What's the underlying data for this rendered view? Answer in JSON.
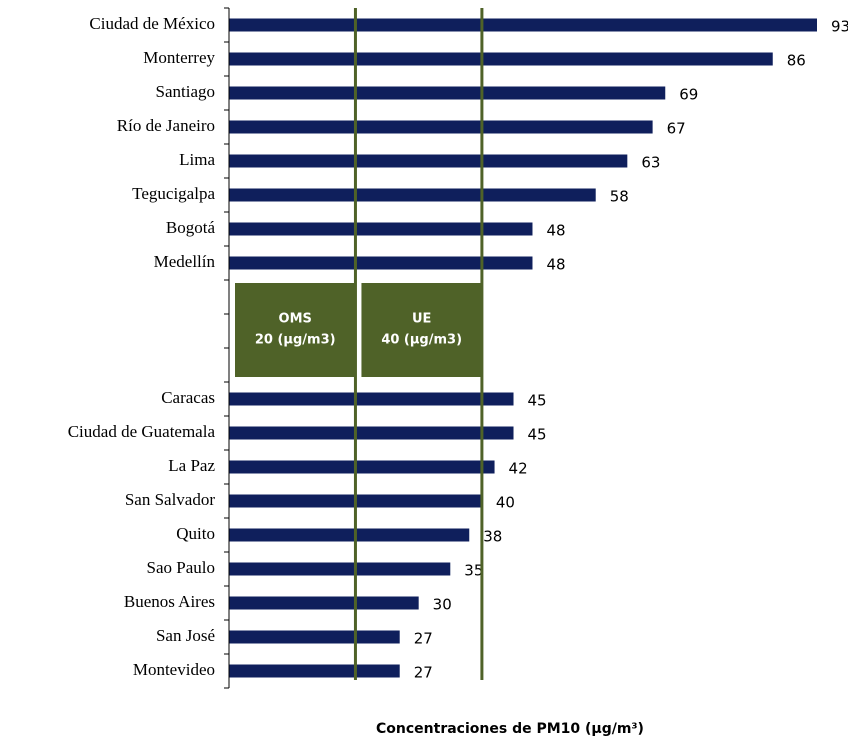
{
  "chart_data": {
    "type": "hbar",
    "categories": [
      "Ciudad de México",
      "Monterrey",
      "Santiago",
      "Río de Janeiro",
      "Lima",
      "Tegucigalpa",
      "Bogotá",
      "Medellín",
      null,
      null,
      null,
      "Caracas",
      "Ciudad de Guatemala",
      "La Paz",
      "San Salvador",
      "Quito",
      "Sao Paulo",
      "Buenos Aires",
      "San José",
      "Montevideo"
    ],
    "values": [
      93,
      86,
      69,
      67,
      63,
      58,
      48,
      48,
      null,
      null,
      null,
      45,
      45,
      42,
      40,
      38,
      35,
      30,
      27,
      27
    ],
    "color": "#0f1f5c",
    "xlim": [
      0,
      93
    ],
    "x_label": "Concentraciones de PM10  (µg/m³)",
    "reference_lines": [
      {
        "value": 20,
        "name": "OMS",
        "label": "20  (µg/m3)",
        "color": "#4f6228"
      },
      {
        "value": 40,
        "name": "UE",
        "label": "40 (µg/m3)",
        "color": "#4f6228"
      }
    ]
  }
}
